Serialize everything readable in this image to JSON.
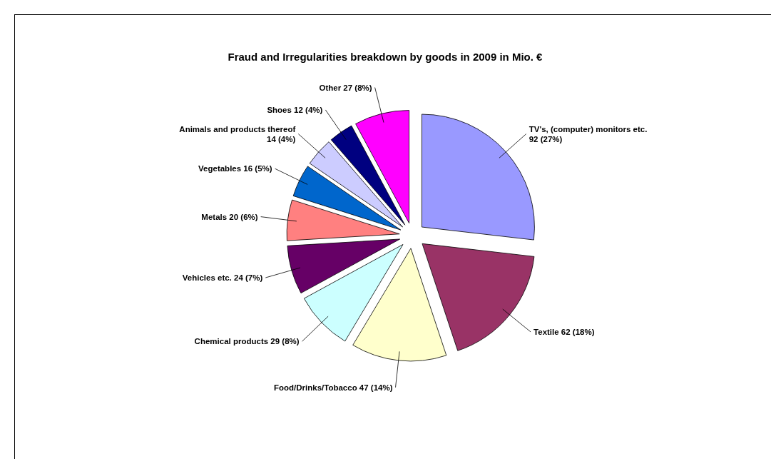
{
  "chart_data": {
    "type": "pie",
    "title": "Fraud and Irregularities breakdown by goods in 2009 in Mio. €",
    "categories": [
      "TV's, (computer) monitors etc.",
      "Textile",
      "Food/Drinks/Tobacco",
      "Chemical products",
      "Vehicles etc.",
      "Metals",
      "Vegetables",
      "Animals and products thereof",
      "Shoes",
      "Other"
    ],
    "values": [
      92,
      62,
      47,
      29,
      24,
      20,
      16,
      14,
      12,
      27
    ],
    "value_labels": [
      "92 (27%)",
      "62 (18%)",
      "47 (14%)",
      "29 (8%)",
      "24 (7%)",
      "20 (6%)",
      "16 (5%)",
      "14 (4%)",
      "12 (4%)",
      "27 (8%)"
    ],
    "colors": [
      "#9999ff",
      "#993366",
      "#ffffcc",
      "#ccffff",
      "#660066",
      "#ff8080",
      "#0066cc",
      "#ccccff",
      "#000080",
      "#ff00ff"
    ],
    "legend": false
  }
}
